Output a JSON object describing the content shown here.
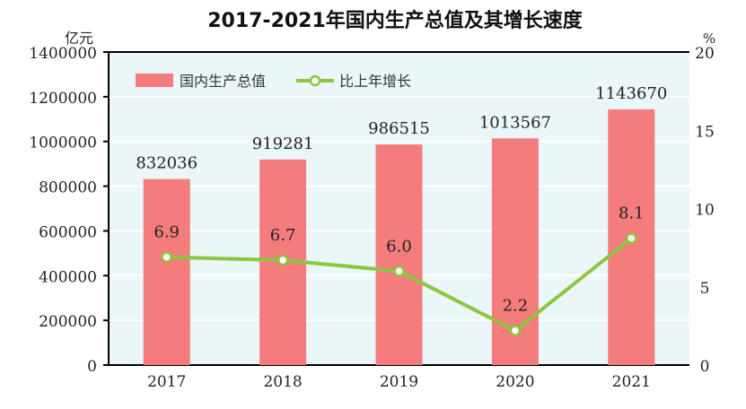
{
  "chart_data": {
    "type": "bar+line",
    "title": "2017-2021年国内生产总值及其增长速度",
    "categories": [
      "2017",
      "2018",
      "2019",
      "2020",
      "2021"
    ],
    "series": [
      {
        "name": "国内生产总值",
        "type": "bar",
        "axis": "left",
        "values": [
          832036,
          919281,
          986515,
          1013567,
          1143670
        ],
        "labels": [
          "832036",
          "919281",
          "986515",
          "1013567",
          "1143670"
        ],
        "color": "#f47c7c"
      },
      {
        "name": "比上年增长",
        "type": "line",
        "axis": "right",
        "values": [
          6.9,
          6.7,
          6.0,
          2.2,
          8.1
        ],
        "labels": [
          "6.9",
          "6.7",
          "6.0",
          "2.2",
          "8.1"
        ],
        "color": "#8cc63f"
      }
    ],
    "ylabel_left": "亿元",
    "ylabel_right": "%",
    "ylim_left": [
      0,
      1400000
    ],
    "ylim_right": [
      0,
      20
    ],
    "yticks_left": [
      "0",
      "200000",
      "400000",
      "600000",
      "800000",
      "1000000",
      "1200000",
      "1400000"
    ],
    "yticks_right": [
      "0",
      "5",
      "10",
      "15",
      "20"
    ],
    "grid": true,
    "legend_position": "top-left",
    "background": "#eaf6f8"
  }
}
